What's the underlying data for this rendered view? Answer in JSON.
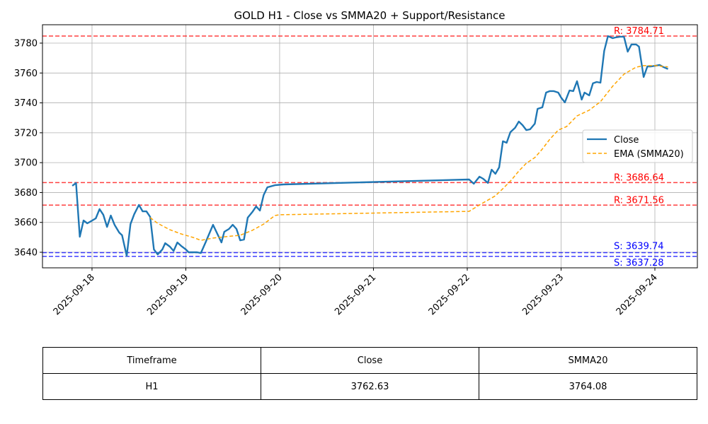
{
  "chart_data": {
    "type": "line",
    "title": "GOLD H1 - Close vs SMMA20 + Support/Resistance",
    "xlabel": "",
    "ylabel": "",
    "x_unit": "days since 2025-09-18 00:00",
    "xlim": [
      -0.528,
      6.453
    ],
    "ylim": [
      3629.6,
      3792.3
    ],
    "grid": true,
    "legend_placement": "center-right",
    "x_ticks": [
      {
        "t": 0,
        "label": "2025-09-18"
      },
      {
        "t": 1,
        "label": "2025-09-19"
      },
      {
        "t": 2,
        "label": "2025-09-20"
      },
      {
        "t": 3,
        "label": "2025-09-21"
      },
      {
        "t": 4,
        "label": "2025-09-22"
      },
      {
        "t": 5,
        "label": "2025-09-23"
      },
      {
        "t": 6,
        "label": "2025-09-24"
      }
    ],
    "y_ticks": [
      3640,
      3660,
      3680,
      3700,
      3720,
      3740,
      3760,
      3780
    ],
    "series": [
      {
        "name": "Close",
        "color": "#1f77b4",
        "style": "solid",
        "points": [
          [
            -0.21,
            3684.5
          ],
          [
            -0.17,
            3686.4
          ],
          [
            -0.13,
            3650.4
          ],
          [
            -0.09,
            3661.3
          ],
          [
            -0.05,
            3659.4
          ],
          [
            -0.01,
            3660.8
          ],
          [
            0.04,
            3662.7
          ],
          [
            0.08,
            3668.9
          ],
          [
            0.12,
            3665.1
          ],
          [
            0.16,
            3657.0
          ],
          [
            0.2,
            3664.6
          ],
          [
            0.24,
            3658.4
          ],
          [
            0.29,
            3653.2
          ],
          [
            0.32,
            3651.4
          ],
          [
            0.37,
            3637.6
          ],
          [
            0.41,
            3658.9
          ],
          [
            0.45,
            3665.5
          ],
          [
            0.5,
            3671.7
          ],
          [
            0.54,
            3667.4
          ],
          [
            0.58,
            3667.4
          ],
          [
            0.62,
            3663.7
          ],
          [
            0.66,
            3641.9
          ],
          [
            0.7,
            3638.6
          ],
          [
            0.75,
            3641.9
          ],
          [
            0.78,
            3646.1
          ],
          [
            0.83,
            3643.8
          ],
          [
            0.87,
            3640.9
          ],
          [
            0.91,
            3646.6
          ],
          [
            0.95,
            3644.3
          ],
          [
            1.0,
            3641.9
          ],
          [
            1.03,
            3640.0
          ],
          [
            1.12,
            3640.0
          ],
          [
            1.16,
            3639.5
          ],
          [
            1.21,
            3646.6
          ],
          [
            1.29,
            3658.4
          ],
          [
            1.38,
            3646.6
          ],
          [
            1.41,
            3653.7
          ],
          [
            1.46,
            3655.6
          ],
          [
            1.5,
            3658.4
          ],
          [
            1.54,
            3655.6
          ],
          [
            1.58,
            3648.0
          ],
          [
            1.62,
            3648.5
          ],
          [
            1.66,
            3663.2
          ],
          [
            1.71,
            3667.0
          ],
          [
            1.75,
            3670.7
          ],
          [
            1.79,
            3667.9
          ],
          [
            1.83,
            3678.3
          ],
          [
            1.87,
            3683.5
          ],
          [
            1.95,
            3684.9
          ],
          [
            2.04,
            3685.4
          ],
          [
            4.02,
            3688.7
          ],
          [
            4.07,
            3685.9
          ],
          [
            4.13,
            3690.6
          ],
          [
            4.17,
            3689.2
          ],
          [
            4.22,
            3686.4
          ],
          [
            4.26,
            3695.3
          ],
          [
            4.3,
            3692.5
          ],
          [
            4.34,
            3696.8
          ],
          [
            4.38,
            3714.3
          ],
          [
            4.42,
            3713.3
          ],
          [
            4.46,
            3720.4
          ],
          [
            4.51,
            3723.3
          ],
          [
            4.55,
            3727.5
          ],
          [
            4.59,
            3725.1
          ],
          [
            4.63,
            3721.8
          ],
          [
            4.67,
            3722.3
          ],
          [
            4.72,
            3726.1
          ],
          [
            4.75,
            3736.0
          ],
          [
            4.8,
            3737.0
          ],
          [
            4.84,
            3746.9
          ],
          [
            4.88,
            3747.9
          ],
          [
            4.92,
            3747.9
          ],
          [
            4.97,
            3746.9
          ],
          [
            5.0,
            3743.6
          ],
          [
            5.04,
            3740.3
          ],
          [
            5.09,
            3748.3
          ],
          [
            5.13,
            3747.9
          ],
          [
            5.17,
            3754.5
          ],
          [
            5.22,
            3742.2
          ],
          [
            5.25,
            3746.9
          ],
          [
            5.3,
            3745.0
          ],
          [
            5.34,
            3753.1
          ],
          [
            5.38,
            3754.0
          ],
          [
            5.42,
            3753.5
          ],
          [
            5.46,
            3774.8
          ],
          [
            5.5,
            3784.7
          ],
          [
            5.55,
            3783.3
          ],
          [
            5.58,
            3783.8
          ],
          [
            5.63,
            3784.3
          ],
          [
            5.67,
            3784.3
          ],
          [
            5.71,
            3774.3
          ],
          [
            5.75,
            3779.1
          ],
          [
            5.8,
            3779.1
          ],
          [
            5.83,
            3777.7
          ],
          [
            5.88,
            3757.3
          ],
          [
            5.92,
            3764.4
          ],
          [
            5.96,
            3764.4
          ],
          [
            6.01,
            3764.9
          ],
          [
            6.05,
            3765.4
          ],
          [
            6.09,
            3764.0
          ],
          [
            6.14,
            3762.63
          ]
        ]
      },
      {
        "name": "EMA (SMMA20)",
        "color": "#ffa500",
        "style": "dashed",
        "points": [
          [
            0.62,
            3663.2
          ],
          [
            0.7,
            3659.4
          ],
          [
            0.83,
            3655.1
          ],
          [
            0.95,
            3652.3
          ],
          [
            1.08,
            3649.9
          ],
          [
            1.16,
            3648.0
          ],
          [
            1.29,
            3649.5
          ],
          [
            1.42,
            3650.4
          ],
          [
            1.58,
            3651.4
          ],
          [
            1.71,
            3654.7
          ],
          [
            1.83,
            3658.9
          ],
          [
            1.95,
            3664.6
          ],
          [
            2.0,
            3665.1
          ],
          [
            4.02,
            3667.4
          ],
          [
            4.13,
            3671.7
          ],
          [
            4.3,
            3677.8
          ],
          [
            4.38,
            3682.6
          ],
          [
            4.47,
            3688.3
          ],
          [
            4.55,
            3694.4
          ],
          [
            4.63,
            3699.6
          ],
          [
            4.72,
            3703.4
          ],
          [
            4.8,
            3709.1
          ],
          [
            4.88,
            3715.7
          ],
          [
            4.97,
            3721.8
          ],
          [
            5.06,
            3724.2
          ],
          [
            5.17,
            3731.3
          ],
          [
            5.3,
            3735.1
          ],
          [
            5.42,
            3740.8
          ],
          [
            5.55,
            3751.2
          ],
          [
            5.67,
            3759.2
          ],
          [
            5.8,
            3763.9
          ],
          [
            5.88,
            3764.9
          ],
          [
            6.01,
            3764.9
          ],
          [
            6.14,
            3764.08
          ]
        ]
      }
    ],
    "resistance": [
      {
        "value": 3784.71,
        "label": "R: 3784.71"
      },
      {
        "value": 3686.64,
        "label": "R: 3686.64"
      },
      {
        "value": 3671.56,
        "label": "R: 3671.56"
      }
    ],
    "support": [
      {
        "value": 3639.74,
        "label": "S: 3639.74"
      },
      {
        "value": 3637.28,
        "label": "S: 3637.28"
      }
    ],
    "colors": {
      "resistance": "#ff0000",
      "support": "#0000ff"
    }
  },
  "table": {
    "headers": [
      "Timeframe",
      "Close",
      "SMMA20"
    ],
    "rows": [
      [
        "H1",
        "3762.63",
        "3764.08"
      ]
    ]
  }
}
